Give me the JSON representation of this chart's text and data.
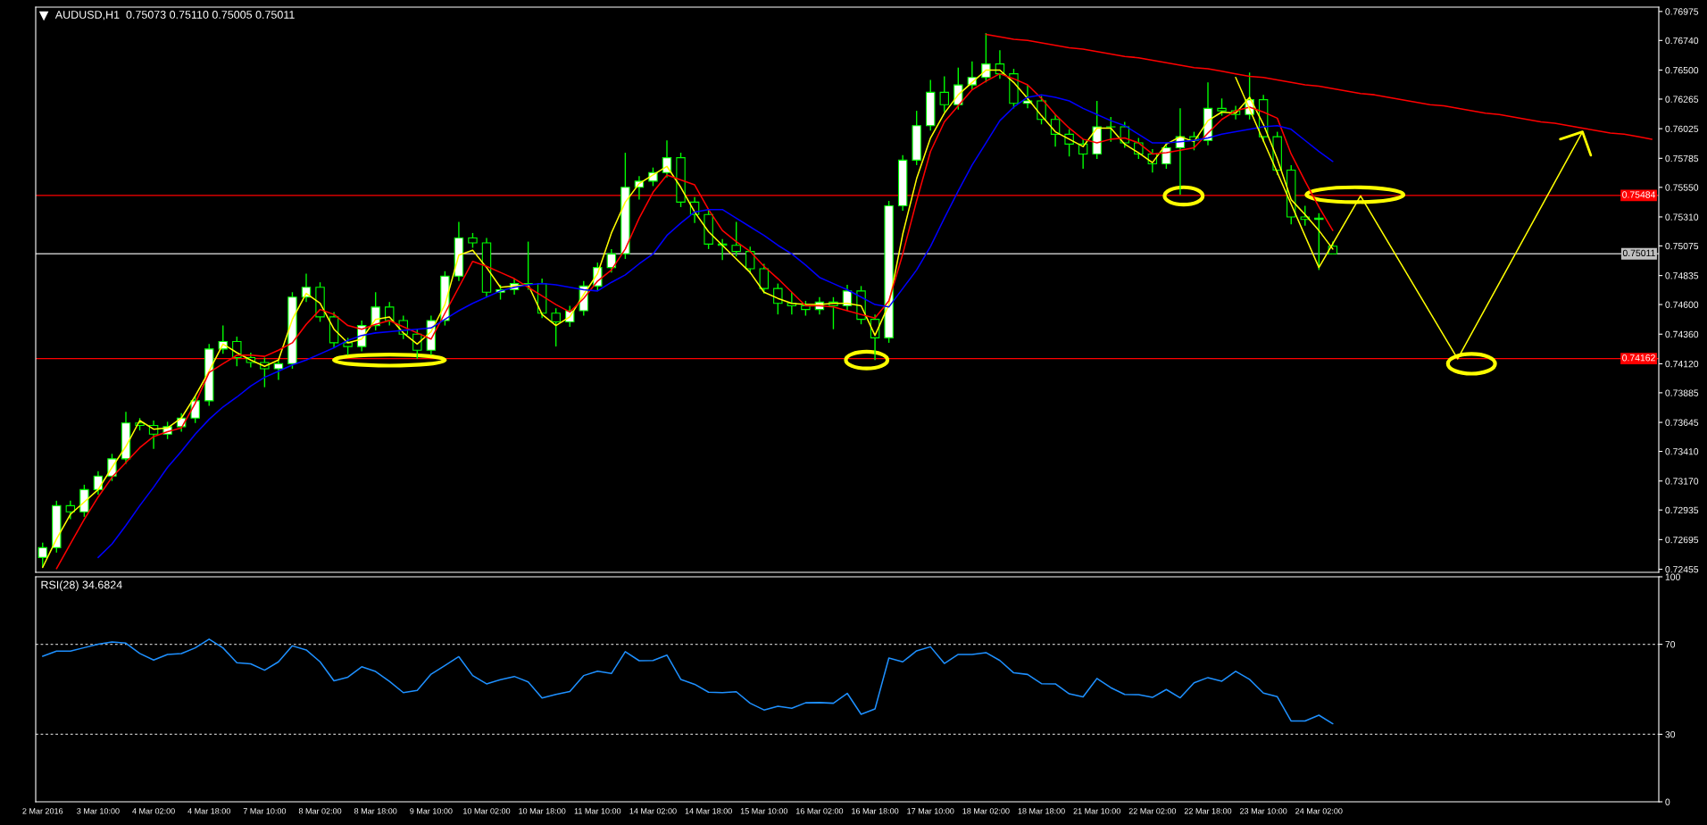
{
  "chart_data": [
    {
      "type": "candlestick",
      "title": "AUDUSD,H1  0.75073 0.75110 0.75005 0.75011",
      "categories": [
        null,
        null,
        null,
        null,
        null,
        null,
        null,
        null,
        null,
        null,
        null,
        null,
        null,
        null,
        null,
        null,
        null,
        null,
        null,
        null,
        null,
        null,
        null,
        null,
        null,
        null,
        null,
        null,
        null,
        null,
        null,
        null,
        null,
        null,
        null,
        null,
        null,
        null,
        null,
        null,
        null,
        null,
        null,
        null,
        null,
        null,
        null,
        null,
        null,
        null,
        null,
        null,
        null,
        null,
        null,
        null,
        null,
        null,
        null,
        null,
        null,
        null,
        null,
        null,
        null,
        null,
        null,
        null,
        null,
        null,
        null,
        null,
        null,
        null,
        null,
        null,
        null,
        null,
        null,
        null,
        null,
        null,
        null,
        null,
        null,
        null,
        null,
        null,
        null,
        null,
        null,
        null,
        null,
        null,
        null,
        null,
        null,
        null,
        null,
        null,
        null,
        null,
        null,
        null,
        null,
        null,
        null,
        null,
        null,
        null,
        null,
        null,
        null,
        null,
        null,
        null,
        null
      ],
      "ohlc": [
        [
          0.7255,
          0.7267,
          0.7247,
          0.7263
        ],
        [
          0.7263,
          0.7301,
          0.7259,
          0.7297
        ],
        [
          0.7297,
          0.7301,
          0.7286,
          0.7292
        ],
        [
          0.7292,
          0.7314,
          0.7288,
          0.731
        ],
        [
          0.731,
          0.7325,
          0.7306,
          0.7321
        ],
        [
          0.7321,
          0.7339,
          0.7317,
          0.7335
        ],
        [
          0.7335,
          0.7373,
          0.7331,
          0.7364
        ],
        [
          0.7364,
          0.7368,
          0.7358,
          0.7362
        ],
        [
          0.7362,
          0.7366,
          0.7343,
          0.7355
        ],
        [
          0.7355,
          0.7365,
          0.7351,
          0.7361
        ],
        [
          0.7361,
          0.7372,
          0.7357,
          0.7368
        ],
        [
          0.7368,
          0.7386,
          0.7364,
          0.7382
        ],
        [
          0.7382,
          0.7428,
          0.7378,
          0.7424
        ],
        [
          0.7424,
          0.7443,
          0.742,
          0.743
        ],
        [
          0.743,
          0.7434,
          0.741,
          0.7417
        ],
        [
          0.7417,
          0.7421,
          0.7409,
          0.7413
        ],
        [
          0.7413,
          0.7417,
          0.7393,
          0.7408
        ],
        [
          0.7408,
          0.7416,
          0.7399,
          0.7412
        ],
        [
          0.7412,
          0.747,
          0.7408,
          0.7466
        ],
        [
          0.7466,
          0.7485,
          0.7462,
          0.7474
        ],
        [
          0.7474,
          0.7478,
          0.7446,
          0.745
        ],
        [
          0.745,
          0.7454,
          0.7425,
          0.7429
        ],
        [
          0.7429,
          0.7433,
          0.7419,
          0.7426
        ],
        [
          0.7426,
          0.7447,
          0.7422,
          0.7443
        ],
        [
          0.7443,
          0.747,
          0.7439,
          0.7458
        ],
        [
          0.7458,
          0.7462,
          0.7443,
          0.7447
        ],
        [
          0.7447,
          0.7451,
          0.7432,
          0.7436
        ],
        [
          0.7436,
          0.744,
          0.7416,
          0.7423
        ],
        [
          0.7423,
          0.7451,
          0.7419,
          0.7447
        ],
        [
          0.7447,
          0.7487,
          0.7443,
          0.7483
        ],
        [
          0.7483,
          0.7527,
          0.7479,
          0.7514
        ],
        [
          0.7514,
          0.7518,
          0.7506,
          0.751
        ],
        [
          0.751,
          0.7514,
          0.7466,
          0.747
        ],
        [
          0.747,
          0.7476,
          0.7464,
          0.7472
        ],
        [
          0.7472,
          0.7481,
          0.7468,
          0.7477
        ],
        [
          0.7477,
          0.7511,
          0.7472,
          0.7477
        ],
        [
          0.7477,
          0.7481,
          0.7449,
          0.7453
        ],
        [
          0.7453,
          0.7457,
          0.7426,
          0.7446
        ],
        [
          0.7446,
          0.7459,
          0.7442,
          0.7455
        ],
        [
          0.7455,
          0.7479,
          0.7451,
          0.7475
        ],
        [
          0.7475,
          0.7494,
          0.7471,
          0.749
        ],
        [
          0.749,
          0.7505,
          0.7486,
          0.7501
        ],
        [
          0.7501,
          0.7583,
          0.7497,
          0.7555
        ],
        [
          0.7555,
          0.7564,
          0.7545,
          0.756
        ],
        [
          0.756,
          0.7571,
          0.7556,
          0.7567
        ],
        [
          0.7567,
          0.7593,
          0.7563,
          0.7579
        ],
        [
          0.7579,
          0.7583,
          0.7539,
          0.7543
        ],
        [
          0.7543,
          0.7547,
          0.7526,
          0.7533
        ],
        [
          0.7533,
          0.7537,
          0.7505,
          0.7509
        ],
        [
          0.7509,
          0.7513,
          0.7496,
          0.7508
        ],
        [
          0.7508,
          0.7527,
          0.7499,
          0.7503
        ],
        [
          0.7503,
          0.7507,
          0.7485,
          0.7489
        ],
        [
          0.7489,
          0.7493,
          0.7469,
          0.7473
        ],
        [
          0.7473,
          0.7477,
          0.7452,
          0.7461
        ],
        [
          0.7461,
          0.747,
          0.7452,
          0.7459
        ],
        [
          0.7459,
          0.7463,
          0.7451,
          0.7456
        ],
        [
          0.7456,
          0.7466,
          0.7452,
          0.7462
        ],
        [
          0.7462,
          0.7466,
          0.744,
          0.7459
        ],
        [
          0.7459,
          0.7476,
          0.7455,
          0.7471
        ],
        [
          0.7471,
          0.7475,
          0.7444,
          0.7448
        ],
        [
          0.7448,
          0.7452,
          0.7415,
          0.7433
        ],
        [
          0.7433,
          0.7544,
          0.7429,
          0.754
        ],
        [
          0.754,
          0.7581,
          0.7536,
          0.7577
        ],
        [
          0.7577,
          0.7617,
          0.7573,
          0.7605
        ],
        [
          0.7605,
          0.7642,
          0.7601,
          0.7632
        ],
        [
          0.7632,
          0.7645,
          0.7616,
          0.7622
        ],
        [
          0.7622,
          0.7652,
          0.7618,
          0.7638
        ],
        [
          0.7638,
          0.7657,
          0.7634,
          0.7644
        ],
        [
          0.7644,
          0.768,
          0.764,
          0.7655
        ],
        [
          0.7655,
          0.7666,
          0.7643,
          0.7647
        ],
        [
          0.7647,
          0.7651,
          0.7619,
          0.7623
        ],
        [
          0.7623,
          0.7638,
          0.7619,
          0.7625
        ],
        [
          0.7625,
          0.7629,
          0.7606,
          0.761
        ],
        [
          0.761,
          0.7614,
          0.7588,
          0.7598
        ],
        [
          0.7598,
          0.7602,
          0.758,
          0.759
        ],
        [
          0.759,
          0.7594,
          0.757,
          0.7582
        ],
        [
          0.7582,
          0.7625,
          0.7578,
          0.7604
        ],
        [
          0.7604,
          0.7612,
          0.7592,
          0.7604
        ],
        [
          0.7604,
          0.7608,
          0.7587,
          0.7591
        ],
        [
          0.7591,
          0.7595,
          0.7578,
          0.7582
        ],
        [
          0.7582,
          0.7586,
          0.7567,
          0.7574
        ],
        [
          0.7574,
          0.7591,
          0.757,
          0.7587
        ],
        [
          0.7587,
          0.7619,
          0.7549,
          0.7596
        ],
        [
          0.7596,
          0.76,
          0.7585,
          0.7593
        ],
        [
          0.7593,
          0.764,
          0.7589,
          0.7619
        ],
        [
          0.7619,
          0.7627,
          0.7613,
          0.7617
        ],
        [
          0.7617,
          0.7621,
          0.761,
          0.7614
        ],
        [
          0.7614,
          0.7648,
          0.761,
          0.7626
        ],
        [
          0.7626,
          0.763,
          0.7592,
          0.7596
        ],
        [
          0.7596,
          0.76,
          0.7565,
          0.7569
        ],
        [
          0.7569,
          0.7573,
          0.7525,
          0.7531
        ],
        [
          0.7531,
          0.754,
          0.7524,
          0.7529
        ],
        [
          0.7529,
          0.7534,
          0.7488,
          0.753
        ],
        [
          0.75073,
          0.7511,
          0.75005,
          0.75011
        ],
        null,
        null,
        null,
        null,
        null,
        null,
        null,
        null,
        null,
        null,
        null,
        null,
        null,
        null,
        null,
        null,
        null,
        null,
        null,
        null,
        null,
        null,
        null
      ],
      "series": [
        {
          "type": "line",
          "color": "#ffff00",
          "values": [
            0.7247,
            0.727,
            0.729,
            0.73,
            0.731,
            0.7328,
            0.7345,
            0.7366,
            0.7359,
            0.736,
            0.7368,
            0.7386,
            0.7406,
            0.7428,
            0.7421,
            0.7415,
            0.741,
            0.7415,
            0.7448,
            0.7469,
            0.7461,
            0.744,
            0.7429,
            0.7432,
            0.7448,
            0.745,
            0.7437,
            0.7428,
            0.7438,
            0.746,
            0.75,
            0.7504,
            0.749,
            0.7474,
            0.7475,
            0.7476,
            0.7452,
            0.7443,
            0.745,
            0.7468,
            0.7485,
            0.7518,
            0.7543,
            0.7558,
            0.7565,
            0.7572,
            0.7555,
            0.7535,
            0.7519,
            0.7508,
            0.7497,
            0.7486,
            0.747,
            0.7465,
            0.7461,
            0.746,
            0.746,
            0.7461,
            0.7461,
            0.7459,
            0.7435,
            0.746,
            0.7517,
            0.7562,
            0.7595,
            0.7615,
            0.763,
            0.764,
            0.765,
            0.765,
            0.764,
            0.7627,
            0.7613,
            0.76,
            0.7594,
            0.7588,
            0.7603,
            0.7603,
            0.759,
            0.7583,
            0.7575,
            0.759,
            0.7596,
            0.7592,
            0.7609,
            0.7616,
            0.7615,
            0.7628,
            0.7606,
            0.7578,
            0.7545,
            0.7533,
            0.752,
            0.7505,
            null,
            null,
            null,
            null,
            null,
            null,
            null,
            null,
            null,
            null,
            null,
            null,
            null,
            null,
            null,
            null,
            null,
            null,
            null,
            null,
            null,
            null,
            null
          ]
        },
        {
          "type": "line",
          "color": "#ff0000",
          "values": [
            null,
            0.7246,
            0.7266,
            0.7286,
            0.7304,
            0.732,
            0.7332,
            0.7344,
            0.7353,
            0.7357,
            0.736,
            0.738,
            0.7405,
            0.7412,
            0.7419,
            0.7419,
            0.7418,
            0.7423,
            0.7429,
            0.7444,
            0.7456,
            0.7452,
            0.7443,
            0.744,
            0.7444,
            0.7447,
            0.7442,
            0.7437,
            0.7432,
            0.7453,
            0.7474,
            0.7495,
            0.7491,
            0.7486,
            0.7481,
            0.7474,
            0.7467,
            0.746,
            0.7454,
            0.7465,
            0.7479,
            0.7488,
            0.7505,
            0.753,
            0.7551,
            0.7565,
            0.7561,
            0.7557,
            0.7537,
            0.752,
            0.7511,
            0.7503,
            0.7491,
            0.7481,
            0.747,
            0.7459,
            0.7459,
            0.7458,
            0.7455,
            0.7452,
            0.7449,
            0.7463,
            0.7501,
            0.7544,
            0.7584,
            0.7608,
            0.7621,
            0.7634,
            0.7641,
            0.7647,
            0.7643,
            0.7638,
            0.7627,
            0.7614,
            0.7603,
            0.7594,
            0.7591,
            0.7594,
            0.7595,
            0.7591,
            0.7582,
            0.7583,
            0.7585,
            0.7587,
            0.7599,
            0.761,
            0.7617,
            0.762,
            0.7616,
            0.7611,
            0.7582,
            0.756,
            0.7539,
            0.752,
            null,
            null,
            null,
            null,
            null,
            null,
            null,
            null,
            null,
            null,
            null,
            null,
            null,
            null,
            null,
            null,
            null,
            null,
            null,
            null,
            null,
            null,
            null
          ]
        },
        {
          "type": "line",
          "color": "#0000ff",
          "values": [
            null,
            null,
            null,
            null,
            0.7255,
            0.7266,
            0.7281,
            0.7297,
            0.7312,
            0.7328,
            0.7341,
            0.7355,
            0.7367,
            0.7377,
            0.7385,
            0.7394,
            0.7401,
            0.7406,
            0.7411,
            0.7415,
            0.742,
            0.7425,
            0.7431,
            0.7435,
            0.7437,
            0.7438,
            0.7439,
            0.744,
            0.7441,
            0.7448,
            0.7455,
            0.7461,
            0.7466,
            0.7471,
            0.7474,
            0.7476,
            0.7477,
            0.7476,
            0.7474,
            0.7472,
            0.7471,
            0.7478,
            0.7484,
            0.7493,
            0.7501,
            0.7516,
            0.7526,
            0.7535,
            0.7537,
            0.7537,
            0.753,
            0.7523,
            0.7516,
            0.7508,
            0.7501,
            0.7492,
            0.7482,
            0.7477,
            0.7472,
            0.7466,
            0.746,
            0.7458,
            0.7473,
            0.7488,
            0.7507,
            0.753,
            0.7552,
            0.7573,
            0.7591,
            0.7609,
            0.762,
            0.7628,
            0.763,
            0.7628,
            0.7625,
            0.7619,
            0.7614,
            0.7609,
            0.7605,
            0.7598,
            0.7591,
            0.7591,
            0.7592,
            0.7593,
            0.7595,
            0.7598,
            0.76,
            0.7602,
            0.7604,
            0.7605,
            0.7602,
            0.7593,
            0.7584,
            0.7576,
            null,
            null,
            null,
            null,
            null,
            null,
            null,
            null,
            null,
            null,
            null,
            null,
            null,
            null,
            null,
            null,
            null,
            null,
            null,
            null,
            null,
            null,
            null
          ]
        },
        {
          "type": "line",
          "color": "#ff0000",
          "values": [
            null,
            null,
            null,
            null,
            null,
            null,
            null,
            null,
            null,
            null,
            null,
            null,
            null,
            null,
            null,
            null,
            null,
            null,
            null,
            null,
            null,
            null,
            null,
            null,
            null,
            null,
            null,
            null,
            null,
            null,
            null,
            null,
            null,
            null,
            null,
            null,
            null,
            null,
            null,
            null,
            null,
            null,
            null,
            null,
            null,
            null,
            null,
            null,
            null,
            null,
            null,
            null,
            null,
            null,
            null,
            null,
            null,
            null,
            null,
            null,
            null,
            null,
            null,
            null,
            null,
            null,
            null,
            null,
            0.7679,
            0.7677,
            0.7675,
            0.7674,
            0.7672,
            0.767,
            0.7668,
            0.7667,
            0.7665,
            0.7663,
            0.7661,
            0.766,
            0.7658,
            0.7656,
            0.7654,
            0.7652,
            0.7651,
            0.7649,
            0.7647,
            0.7645,
            0.7644,
            0.7642,
            0.764,
            0.7638,
            0.7637,
            0.7635,
            0.7633,
            0.7631,
            0.763,
            0.7628,
            0.7626,
            0.7624,
            0.7622,
            0.7621,
            0.7619,
            0.7617,
            0.7615,
            0.7614,
            0.7612,
            0.761,
            0.7608,
            0.7607,
            0.7605,
            0.7603,
            0.7601,
            0.7599,
            0.7598,
            0.7596,
            0.7594
          ]
        },
        {
          "type": "line",
          "color": "#ffff00",
          "values": [
            null,
            null,
            null,
            null,
            null,
            null,
            null,
            null,
            null,
            null,
            null,
            null,
            null,
            null,
            null,
            null,
            null,
            null,
            null,
            null,
            null,
            null,
            null,
            null,
            null,
            null,
            null,
            null,
            null,
            null,
            null,
            null,
            null,
            null,
            null,
            null,
            null,
            null,
            null,
            null,
            null,
            null,
            null,
            null,
            null,
            null,
            null,
            null,
            null,
            null,
            null,
            null,
            null,
            null,
            null,
            null,
            null,
            null,
            null,
            null,
            null,
            null,
            null,
            null,
            null,
            null,
            null,
            null,
            null,
            null,
            null,
            null,
            null,
            null,
            null,
            null,
            null,
            null,
            null,
            null,
            null,
            null,
            null,
            null,
            null,
            null,
            0.7644,
            null,
            null,
            null,
            null,
            null,
            0.749,
            null,
            null,
            0.7548,
            null,
            null,
            null,
            null,
            null,
            null,
            0.7416,
            null,
            null,
            null,
            null,
            null,
            null,
            null,
            null,
            0.76,
            null,
            null,
            null,
            null,
            null
          ]
        }
      ],
      "ref_lines": [
        {
          "axis": "y",
          "value": 0.75484,
          "label": "0.75484",
          "color": "#ff0000",
          "line_style": "solid"
        },
        {
          "axis": "y",
          "value": 0.75011,
          "label": "0.75011",
          "color": "#c0c0c0",
          "line_style": "solid"
        },
        {
          "axis": "y",
          "value": 0.74162,
          "label": "0.74162",
          "color": "#ff0000",
          "line_style": "solid"
        }
      ],
      "ylim": [
        0.7243,
        0.7701
      ],
      "yticks": [
        0.72455,
        0.72695,
        0.72935,
        {
          "value": 0.7317,
          "label": "0.73170"
        },
        {
          "value": 0.7341,
          "label": "0.73410"
        },
        0.73645,
        0.73885,
        {
          "value": 0.7412,
          "label": "0.74120"
        },
        {
          "value": 0.7436,
          "label": "0.74360"
        },
        {
          "value": 0.746,
          "label": "0.74600"
        },
        0.74835,
        0.75075,
        {
          "value": 0.7531,
          "label": "0.75310"
        },
        {
          "value": 0.7555,
          "label": "0.75550"
        },
        0.75785,
        0.76025,
        0.76265,
        {
          "value": 0.765,
          "label": "0.76500"
        },
        {
          "value": 0.7674,
          "label": "0.76740"
        },
        0.76975
      ],
      "tick_labels": "y"
    },
    {
      "type": "line",
      "title": "RSI(28) 34.6824",
      "categories": [
        "2 Mar 2016",
        null,
        null,
        null,
        "3 Mar 10:00",
        null,
        null,
        null,
        "4 Mar 02:00",
        null,
        null,
        null,
        "4 Mar 18:00",
        null,
        null,
        null,
        "7 Mar 10:00",
        null,
        null,
        null,
        "8 Mar 02:00",
        null,
        null,
        null,
        "8 Mar 18:00",
        null,
        null,
        null,
        "9 Mar 10:00",
        null,
        null,
        null,
        "10 Mar 02:00",
        null,
        null,
        null,
        "10 Mar 18:00",
        null,
        null,
        null,
        "11 Mar 10:00",
        null,
        null,
        null,
        "14 Mar 02:00",
        null,
        null,
        null,
        "14 Mar 18:00",
        null,
        null,
        null,
        "15 Mar 10:00",
        null,
        null,
        null,
        "16 Mar 02:00",
        null,
        null,
        null,
        "16 Mar 18:00",
        null,
        null,
        null,
        "17 Mar 10:00",
        null,
        null,
        null,
        "18 Mar 02:00",
        null,
        null,
        null,
        "18 Mar 18:00",
        null,
        null,
        null,
        "21 Mar 10:00",
        null,
        null,
        null,
        "22 Mar 02:00",
        null,
        null,
        null,
        "22 Mar 18:00",
        null,
        null,
        null,
        "23 Mar 10:00",
        null,
        null,
        null,
        "24 Mar 02:00",
        null,
        null,
        null,
        null,
        null,
        null,
        null,
        null,
        null,
        null,
        null,
        null,
        null,
        null,
        null,
        null,
        null,
        null,
        null,
        null,
        null,
        null,
        null,
        null
      ],
      "series": [
        {
          "color": "#1e90ff",
          "values": [
            64.7,
            67.0,
            67.0,
            68.5,
            70.0,
            71.0,
            70.5,
            65.9,
            63.0,
            65.5,
            65.9,
            68.4,
            72.3,
            68.4,
            61.8,
            61.3,
            58.5,
            62.2,
            69.3,
            67.5,
            62.2,
            53.8,
            55.4,
            60.0,
            57.9,
            53.5,
            48.5,
            49.5,
            56.7,
            60.6,
            64.5,
            56.1,
            52.4,
            54.3,
            55.7,
            53.3,
            46.1,
            47.7,
            49.0,
            56.1,
            58.0,
            57.0,
            66.7,
            62.7,
            62.8,
            65.2,
            54.4,
            52.2,
            48.7,
            48.5,
            48.9,
            43.8,
            40.8,
            42.5,
            41.6,
            44.0,
            44.1,
            43.8,
            48.2,
            38.9,
            41.3,
            63.9,
            62.2,
            67.1,
            68.9,
            61.5,
            65.5,
            65.5,
            66.3,
            62.8,
            57.3,
            56.6,
            52.5,
            52.4,
            48.0,
            46.6,
            54.8,
            50.7,
            47.7,
            47.6,
            46.4,
            49.9,
            46.2,
            52.9,
            55.2,
            53.6,
            58.0,
            54.4,
            48.3,
            46.7,
            35.9,
            35.9,
            38.5,
            34.7,
            null,
            null,
            null,
            null,
            null,
            null,
            null,
            null,
            null,
            null,
            null,
            null,
            null,
            null,
            null,
            null,
            null,
            null,
            null,
            null,
            null,
            null,
            null
          ]
        }
      ],
      "ref_lines": [
        {
          "axis": "y",
          "value": 70,
          "color": "#c0c0c0",
          "line_style": "dotted"
        },
        {
          "axis": "y",
          "value": 30,
          "color": "#c0c0c0",
          "line_style": "dotted"
        }
      ],
      "ylim": [
        0,
        100
      ],
      "yticks": [
        0,
        30,
        70,
        100
      ]
    }
  ]
}
